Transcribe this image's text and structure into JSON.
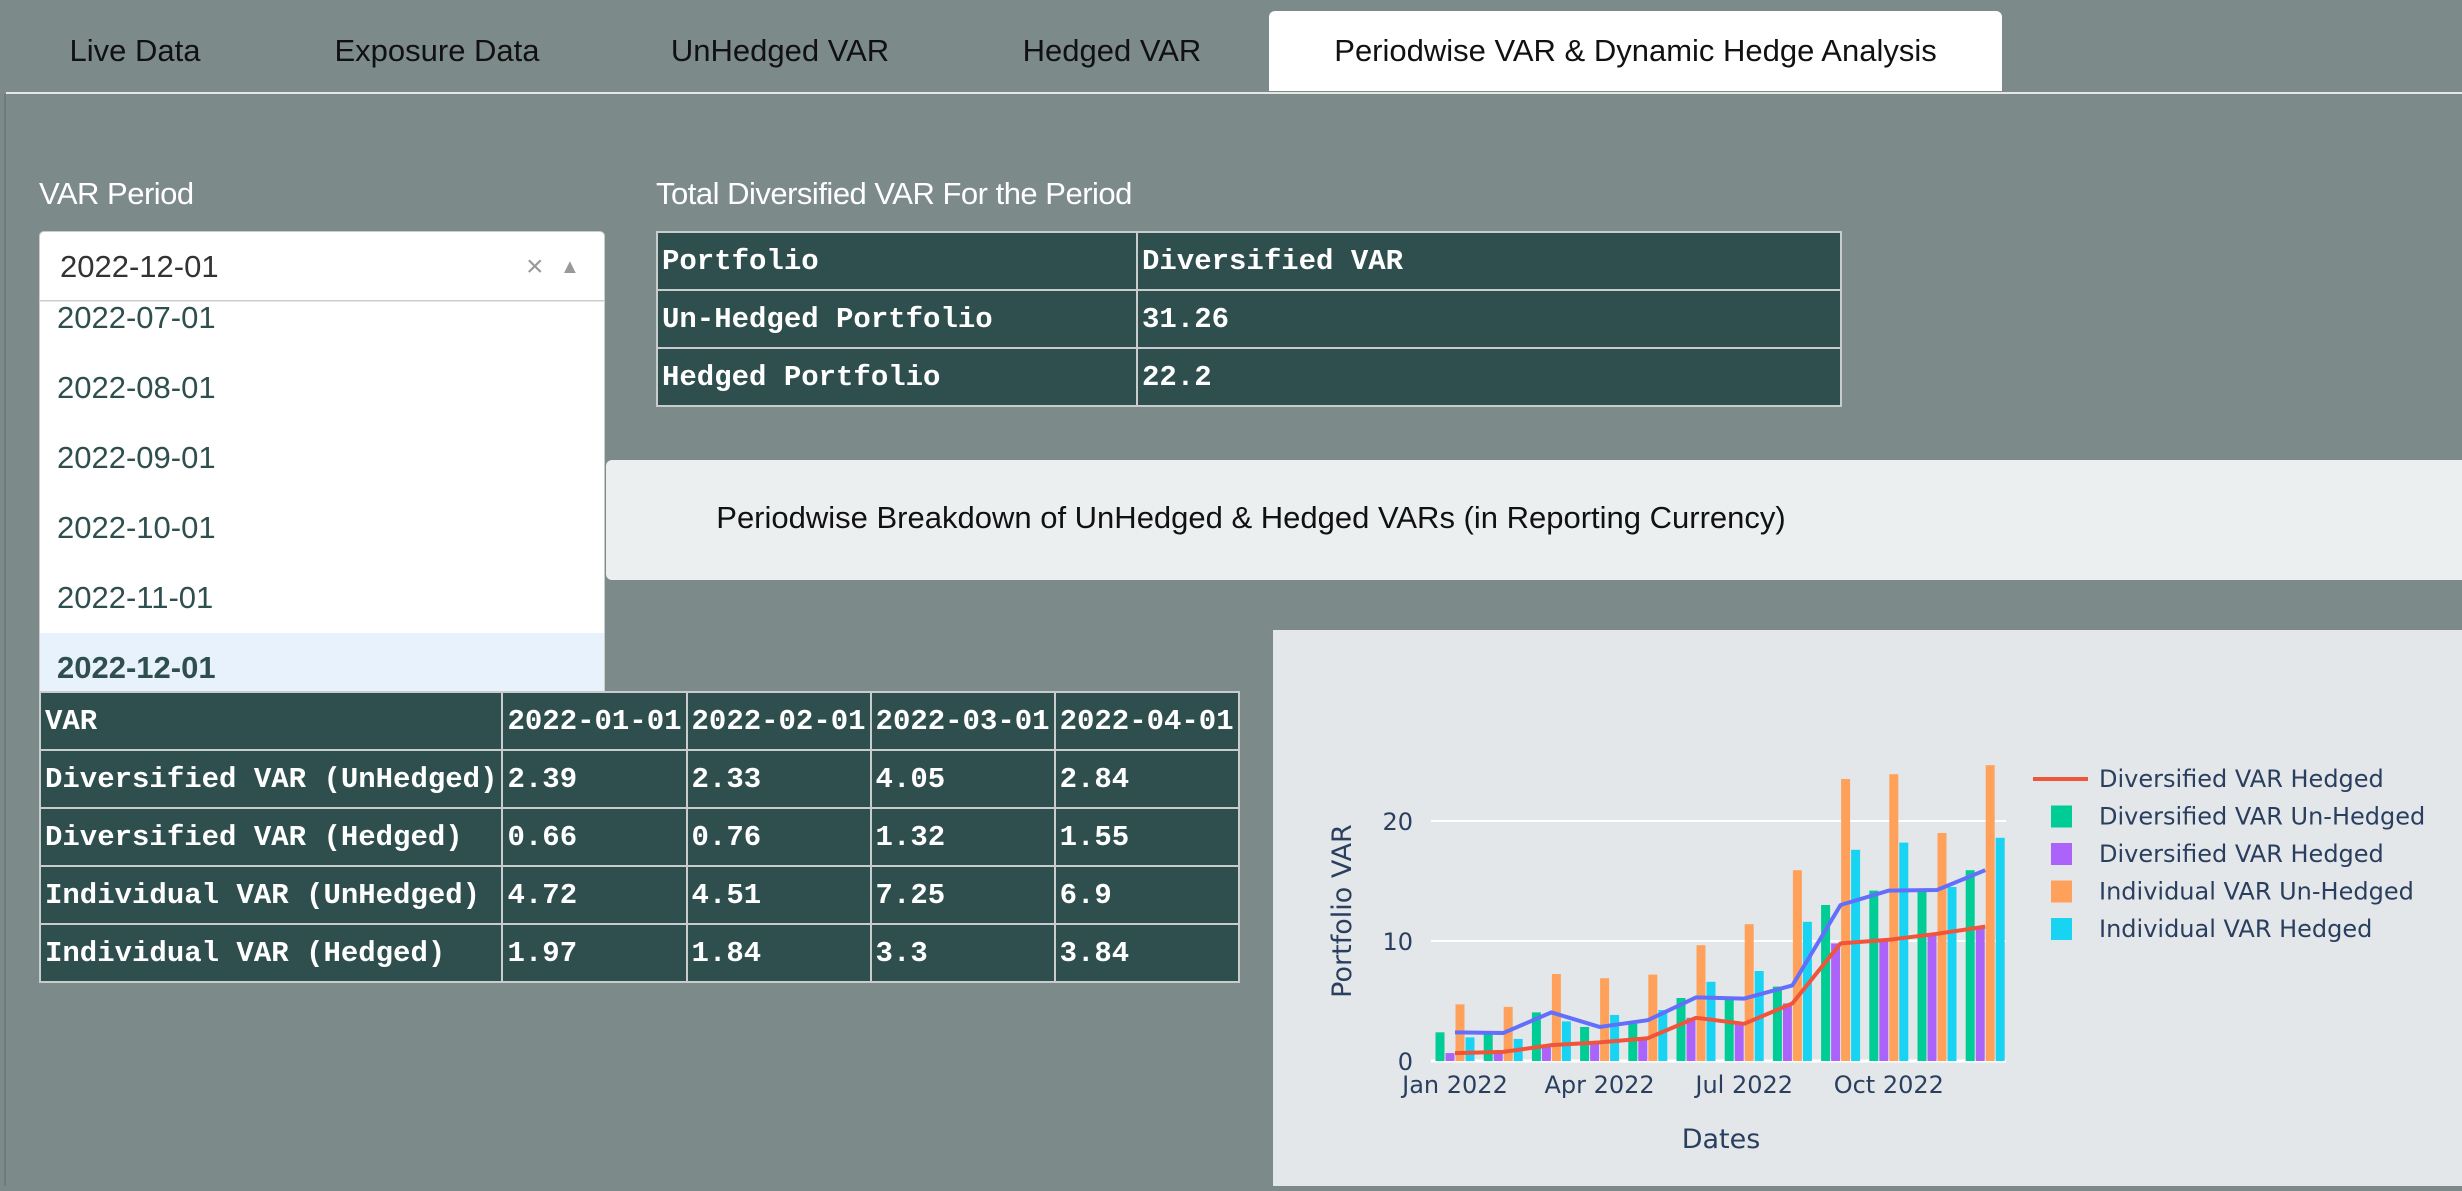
{
  "tabs": [
    {
      "label": "Live Data",
      "active": false
    },
    {
      "label": "Exposure Data",
      "active": false
    },
    {
      "label": "UnHedged VAR",
      "active": false
    },
    {
      "label": "Hedged VAR",
      "active": false
    },
    {
      "label": "Periodwise VAR & Dynamic Hedge Analysis",
      "active": true
    }
  ],
  "var_period": {
    "label": "VAR Period",
    "selected": "2022-12-01",
    "clear_icon": "×",
    "arrow_icon": "▲",
    "options": [
      "2022-07-01",
      "2022-08-01",
      "2022-09-01",
      "2022-10-01",
      "2022-11-01",
      "2022-12-01"
    ]
  },
  "total_var": {
    "label": "Total Diversified VAR For the Period",
    "header": [
      "Portfolio",
      "Diversified VAR"
    ],
    "rows": [
      [
        "Un-Hedged Portfolio",
        "31.26"
      ],
      [
        "Hedged Portfolio",
        "22.2"
      ]
    ]
  },
  "banner": "Periodwise Breakdown of UnHedged & Hedged VARs (in Reporting Currency)",
  "breakdown": {
    "header": [
      "VAR",
      "2022-01-01",
      "2022-02-01",
      "2022-03-01",
      "2022-04-01"
    ],
    "rows": [
      [
        "Diversified VAR (UnHedged)",
        "2.39",
        "2.33",
        "4.05",
        "2.84"
      ],
      [
        "Diversified VAR (Hedged)",
        "0.66",
        "0.76",
        "1.32",
        "1.55"
      ],
      [
        "Individual VAR (UnHedged)",
        "4.72",
        "4.51",
        "7.25",
        "6.9"
      ],
      [
        "Individual VAR (Hedged)",
        "1.97",
        "1.84",
        "3.3",
        "3.84"
      ]
    ]
  },
  "chart_data": {
    "type": "bar",
    "xlabel": "Dates",
    "ylabel": "Portfolio VAR",
    "x": [
      "2022-01-01",
      "2022-02-01",
      "2022-03-01",
      "2022-04-01",
      "2022-05-01",
      "2022-06-01",
      "2022-07-01",
      "2022-08-01",
      "2022-09-01",
      "2022-10-01",
      "2022-11-01",
      "2022-12-01"
    ],
    "x_ticks": [
      {
        "date": "2022-01-01",
        "label": "Jan 2022"
      },
      {
        "date": "2022-04-01",
        "label": "Apr 2022"
      },
      {
        "date": "2022-07-01",
        "label": "Jul 2022"
      },
      {
        "date": "2022-10-01",
        "label": "Oct 2022"
      }
    ],
    "y_ticks": [
      0,
      10,
      20
    ],
    "ylim": [
      0,
      25.5
    ],
    "grid": true,
    "legend_position": "right",
    "lines": [
      {
        "name": "Diversified VAR Hedged",
        "color": "#ef553b",
        "values": [
          0.66,
          0.76,
          1.32,
          1.55,
          1.9,
          3.6,
          3.1,
          4.8,
          9.8,
          10.1,
          10.6,
          11.2
        ],
        "in_legend": true
      },
      {
        "color": "#636efa",
        "values": [
          2.39,
          2.33,
          4.05,
          2.84,
          3.4,
          5.3,
          5.2,
          6.3,
          13.0,
          14.2,
          14.25,
          15.9
        ],
        "in_legend": false
      }
    ],
    "series": [
      {
        "name": "Diversified VAR Un-Hedged",
        "color": "#00cc96",
        "values": [
          2.39,
          2.33,
          4.05,
          2.84,
          3.1,
          5.25,
          5.2,
          6.2,
          13.0,
          14.2,
          14.25,
          15.9
        ]
      },
      {
        "name": "Diversified VAR Hedged",
        "color": "#ab63fa",
        "values": [
          0.66,
          0.76,
          1.32,
          1.55,
          2.0,
          3.6,
          3.1,
          4.8,
          9.8,
          10.1,
          10.6,
          11.2
        ]
      },
      {
        "name": "Individual VAR Un-Hedged",
        "color": "#ffa15a",
        "values": [
          4.72,
          4.51,
          7.25,
          6.9,
          7.2,
          9.65,
          11.4,
          15.9,
          23.5,
          23.9,
          19.0,
          24.65
        ]
      },
      {
        "name": "Individual VAR Hedged",
        "color": "#19d3f3",
        "values": [
          1.97,
          1.84,
          3.3,
          3.84,
          4.25,
          6.6,
          7.5,
          11.6,
          17.6,
          18.2,
          14.5,
          18.6
        ]
      }
    ]
  }
}
